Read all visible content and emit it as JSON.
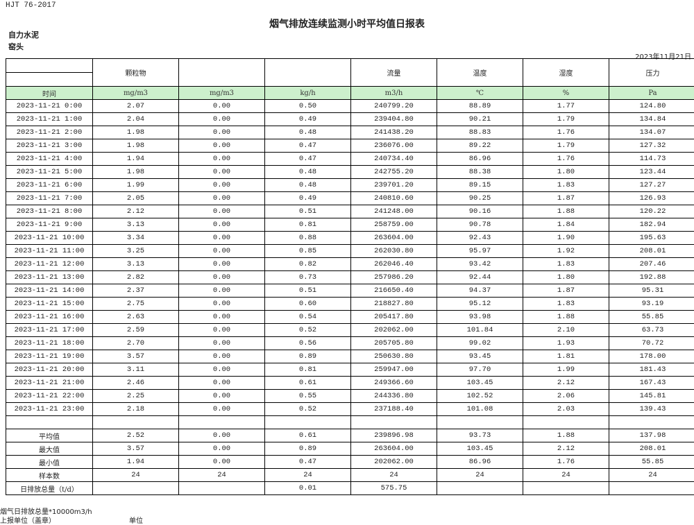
{
  "standard": "HJT  76-2017",
  "title": "烟气排放连续监测小时平均值日报表",
  "company": "自力水泥",
  "location": "窑头",
  "date": "2023年11月21日",
  "headers": [
    "",
    "颗粒物",
    "",
    "",
    "流量",
    "温度",
    "湿度",
    "压力"
  ],
  "units": [
    "时间",
    "mg/m3",
    "mg/m3",
    "kg/h",
    "m3/h",
    "℃",
    "%",
    "Pa"
  ],
  "rows": [
    [
      "2023-11-21 0:00",
      "2.07",
      "0.00",
      "0.50",
      "240799.20",
      "88.89",
      "1.77",
      "124.80"
    ],
    [
      "2023-11-21 1:00",
      "2.04",
      "0.00",
      "0.49",
      "239404.80",
      "90.21",
      "1.79",
      "134.84"
    ],
    [
      "2023-11-21 2:00",
      "1.98",
      "0.00",
      "0.48",
      "241438.20",
      "88.83",
      "1.76",
      "134.07"
    ],
    [
      "2023-11-21 3:00",
      "1.98",
      "0.00",
      "0.47",
      "236076.00",
      "89.22",
      "1.79",
      "127.32"
    ],
    [
      "2023-11-21 4:00",
      "1.94",
      "0.00",
      "0.47",
      "240734.40",
      "86.96",
      "1.76",
      "114.73"
    ],
    [
      "2023-11-21 5:00",
      "1.98",
      "0.00",
      "0.48",
      "242755.20",
      "88.38",
      "1.80",
      "123.44"
    ],
    [
      "2023-11-21 6:00",
      "1.99",
      "0.00",
      "0.48",
      "239701.20",
      "89.15",
      "1.83",
      "127.27"
    ],
    [
      "2023-11-21 7:00",
      "2.05",
      "0.00",
      "0.49",
      "240810.60",
      "90.25",
      "1.87",
      "126.93"
    ],
    [
      "2023-11-21 8:00",
      "2.12",
      "0.00",
      "0.51",
      "241248.00",
      "90.16",
      "1.88",
      "120.22"
    ],
    [
      "2023-11-21 9:00",
      "3.13",
      "0.00",
      "0.81",
      "258759.00",
      "90.78",
      "1.84",
      "182.94"
    ],
    [
      "2023-11-21 10:00",
      "3.34",
      "0.00",
      "0.88",
      "263604.00",
      "92.43",
      "1.90",
      "195.63"
    ],
    [
      "2023-11-21 11:00",
      "3.25",
      "0.00",
      "0.85",
      "262030.80",
      "95.97",
      "1.92",
      "208.01"
    ],
    [
      "2023-11-21 12:00",
      "3.13",
      "0.00",
      "0.82",
      "262046.40",
      "93.42",
      "1.83",
      "207.46"
    ],
    [
      "2023-11-21 13:00",
      "2.82",
      "0.00",
      "0.73",
      "257986.20",
      "92.44",
      "1.80",
      "192.88"
    ],
    [
      "2023-11-21 14:00",
      "2.37",
      "0.00",
      "0.51",
      "216650.40",
      "94.37",
      "1.87",
      "95.31"
    ],
    [
      "2023-11-21 15:00",
      "2.75",
      "0.00",
      "0.60",
      "218827.80",
      "95.12",
      "1.83",
      "93.19"
    ],
    [
      "2023-11-21 16:00",
      "2.63",
      "0.00",
      "0.54",
      "205417.80",
      "93.98",
      "1.88",
      "55.85"
    ],
    [
      "2023-11-21 17:00",
      "2.59",
      "0.00",
      "0.52",
      "202062.00",
      "101.84",
      "2.10",
      "63.73"
    ],
    [
      "2023-11-21 18:00",
      "2.70",
      "0.00",
      "0.56",
      "205705.80",
      "99.02",
      "1.93",
      "70.72"
    ],
    [
      "2023-11-21 19:00",
      "3.57",
      "0.00",
      "0.89",
      "250630.80",
      "93.45",
      "1.81",
      "178.00"
    ],
    [
      "2023-11-21 20:00",
      "3.11",
      "0.00",
      "0.81",
      "259947.00",
      "97.70",
      "1.99",
      "181.43"
    ],
    [
      "2023-11-21 21:00",
      "2.46",
      "0.00",
      "0.61",
      "249366.60",
      "103.45",
      "2.12",
      "167.43"
    ],
    [
      "2023-11-21 22:00",
      "2.25",
      "0.00",
      "0.55",
      "244336.80",
      "102.52",
      "2.06",
      "145.81"
    ],
    [
      "2023-11-21 23:00",
      "2.18",
      "0.00",
      "0.52",
      "237188.40",
      "101.08",
      "2.03",
      "139.43"
    ],
    [
      "",
      "",
      "",
      "",
      "",
      "",
      "",
      ""
    ]
  ],
  "summary": [
    [
      "平均值",
      "2.52",
      "0.00",
      "0.61",
      "239896.98",
      "93.73",
      "1.88",
      "137.98"
    ],
    [
      "最大值",
      "3.57",
      "0.00",
      "0.89",
      "263604.00",
      "103.45",
      "2.12",
      "208.01"
    ],
    [
      "最小值",
      "1.94",
      "0.00",
      "0.47",
      "202062.00",
      "86.96",
      "1.76",
      "55.85"
    ],
    [
      "样本数",
      "24",
      "24",
      "24",
      "24",
      "24",
      "24",
      "24"
    ],
    [
      "日排放总量（t/d）",
      "",
      "",
      "0.01",
      "575.75",
      "",
      "",
      ""
    ]
  ],
  "footer": {
    "note": "烟气日排放总量*10000m3/h",
    "reporter_label": "上报单位（盖章）",
    "unit_label": "单位"
  }
}
